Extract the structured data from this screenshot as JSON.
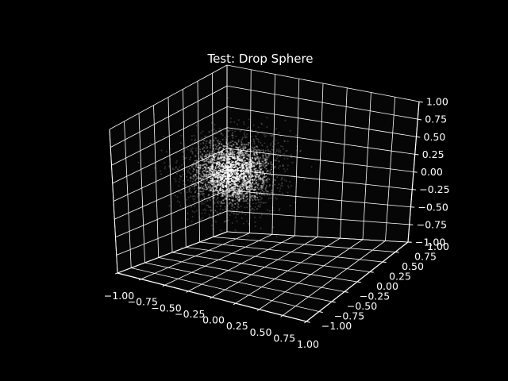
{
  "chart_data": {
    "type": "scatter",
    "title": "Test: Drop Sphere",
    "projection": "3d",
    "background_color": "#000000",
    "grid": true,
    "grid_color": "#ffffff",
    "point_color": "#ffffff",
    "xlim": [
      -1.0,
      1.0
    ],
    "ylim": [
      -1.0,
      1.0
    ],
    "zlim": [
      -1.0,
      1.0
    ],
    "xticks": [
      "−1.00",
      "−0.75",
      "−0.50",
      "−0.25",
      "0.00",
      "0.25",
      "0.50",
      "0.75",
      "1.00"
    ],
    "yticks": [
      "−1.00",
      "−0.75",
      "−0.50",
      "−0.25",
      "0.00",
      "0.25",
      "0.50",
      "0.75",
      "1.00"
    ],
    "zticks": [
      "−1.00",
      "−0.75",
      "−0.50",
      "−0.25",
      "0.00",
      "0.25",
      "0.50",
      "0.75",
      "1.00"
    ],
    "tick_values": [
      -1.0,
      -0.75,
      -0.5,
      -0.25,
      0.0,
      0.25,
      0.5,
      0.75,
      1.0
    ],
    "point_cloud": {
      "distribution": "gaussian ball",
      "center": [
        -0.55,
        0.35,
        0.0
      ],
      "spread": 0.22,
      "count": 2600
    }
  }
}
